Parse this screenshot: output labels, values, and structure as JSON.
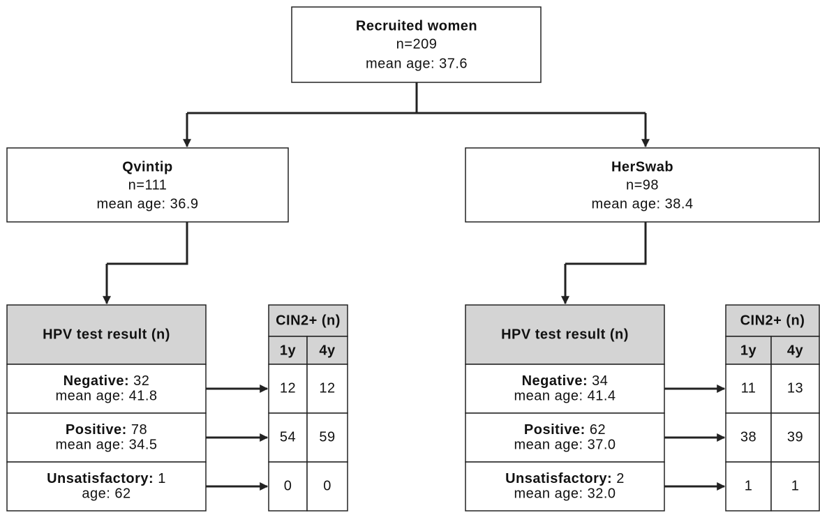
{
  "top": {
    "title": "Recruited women",
    "n": "n=209",
    "age": "mean age: 37.6"
  },
  "branches": [
    {
      "title": "Qvintip",
      "n": "n=111",
      "age": "mean age: 36.9",
      "table": {
        "header": "HPV test result (n)",
        "cin_header": "CIN2+ (n)",
        "cin_cols": [
          "1y",
          "4y"
        ],
        "rows": [
          {
            "label": "Negative:",
            "count": "32",
            "age": "mean age: 41.8",
            "cin": [
              "12",
              "12"
            ]
          },
          {
            "label": "Positive:",
            "count": "78",
            "age": "mean age: 34.5",
            "cin": [
              "54",
              "59"
            ]
          },
          {
            "label": "Unsatisfactory:",
            "count": "1",
            "age": "age: 62",
            "cin": [
              "0",
              "0"
            ]
          }
        ]
      }
    },
    {
      "title": "HerSwab",
      "n": "n=98",
      "age": "mean age: 38.4",
      "table": {
        "header": "HPV test result (n)",
        "cin_header": "CIN2+ (n)",
        "cin_cols": [
          "1y",
          "4y"
        ],
        "rows": [
          {
            "label": "Negative:",
            "count": "34",
            "age": "mean age: 41.4",
            "cin": [
              "11",
              "13"
            ]
          },
          {
            "label": "Positive:",
            "count": "62",
            "age": "mean age: 37.0",
            "cin": [
              "38",
              "39"
            ]
          },
          {
            "label": "Unsatisfactory:",
            "count": "2",
            "age": "mean age: 32.0",
            "cin": [
              "1",
              "1"
            ]
          }
        ]
      }
    }
  ]
}
